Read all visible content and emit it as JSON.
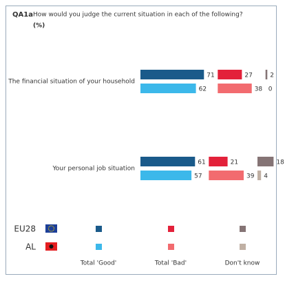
{
  "chart_data": {
    "type": "bar",
    "title": "QA1a",
    "subtitle": "How would you judge the current situation in each of the following?",
    "unit": "(%)",
    "categories": [
      "The financial situation of your household",
      "Your personal job situation"
    ],
    "columns": [
      "Total 'Good'",
      "Total 'Bad'",
      "Don't know"
    ],
    "series": [
      {
        "name": "EU28",
        "colors": [
          "#1a5a8a",
          "#e3213a",
          "#857475"
        ],
        "values": [
          [
            71,
            27,
            2
          ],
          [
            61,
            21,
            18
          ]
        ]
      },
      {
        "name": "AL",
        "colors": [
          "#3cb8ea",
          "#f26b6f",
          "#c0b0a4"
        ],
        "values": [
          [
            62,
            38,
            0
          ],
          [
            57,
            39,
            4
          ]
        ]
      }
    ]
  }
}
